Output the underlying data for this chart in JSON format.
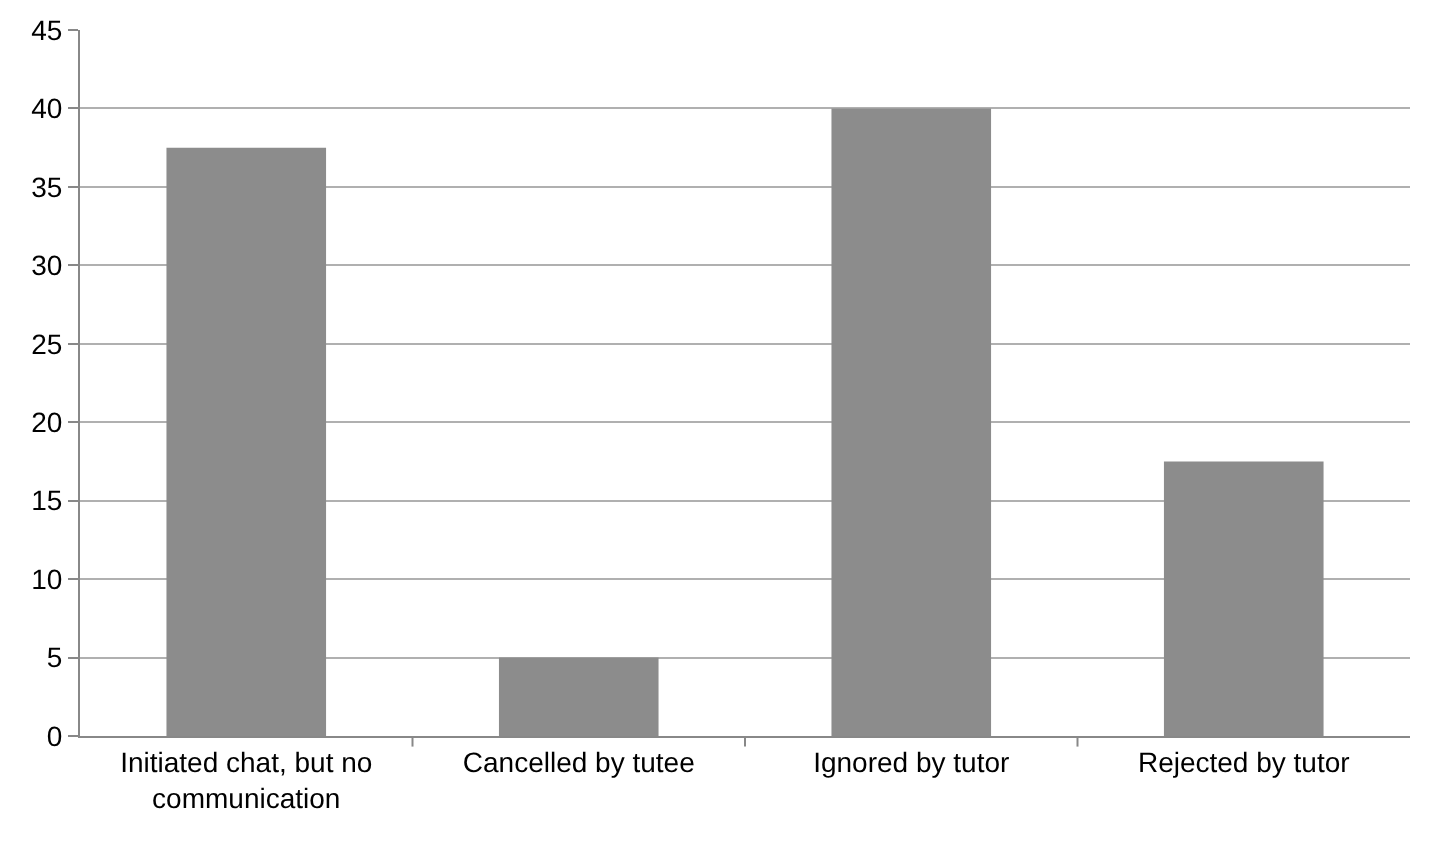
{
  "chart_data": {
    "type": "bar",
    "categories": [
      "Initiated chat, but no communication",
      "Cancelled by tutee",
      "Ignored by tutor",
      "Rejected by tutor"
    ],
    "values": [
      37.5,
      5,
      40,
      17.5
    ],
    "color": "#8c8c8c",
    "ylim": [
      0,
      45
    ],
    "yticks": [
      0,
      5,
      10,
      15,
      20,
      25,
      30,
      35,
      40,
      45
    ],
    "grid": "y"
  }
}
